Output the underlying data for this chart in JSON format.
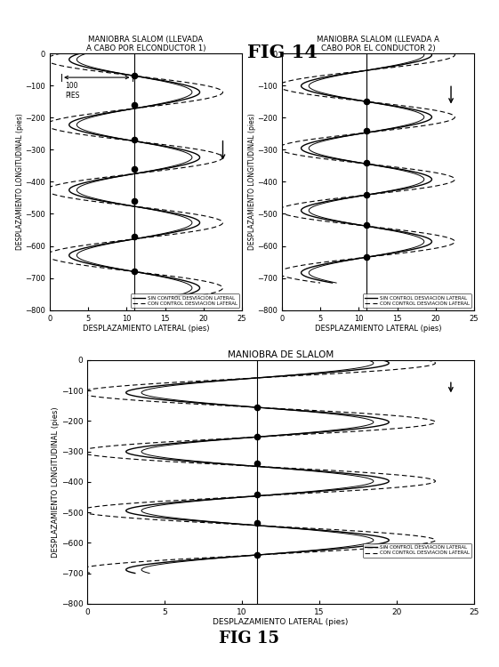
{
  "fig14_title": "FIG 14",
  "fig15_title": "FIG 15",
  "subplot1_title": "MANIOBRA SLALOM (LLEVADA\nA CABO POR ELCONDUCTOR 1)",
  "subplot2_title": "MANIOBRA SLALOM (LLEVADA A\nCABO POR EL CONDUCTOR 2)",
  "subplot3_title": "MANIOBRA DE SLALOM",
  "xlabel": "DESPLAZAMIENTO LATERAL (pies)",
  "ylabel": "DESPLAZAMIENTO LONGITUDINAL (pies)",
  "xlim": [
    0,
    25
  ],
  "ylim": [
    -800,
    0
  ],
  "xticks": [
    0,
    5,
    10,
    15,
    20,
    25
  ],
  "yticks": [
    0,
    -100,
    -200,
    -300,
    -400,
    -500,
    -600,
    -700,
    -800
  ],
  "legend_solid": "SIN CONTROL DESVIACIÓN LATERAL",
  "legend_dashed": "CON CONTROL DESVIACIÓN LATERAL",
  "cone_x": 11,
  "cone_ys_1": [
    -70,
    -160,
    -270,
    -360,
    -460,
    -570,
    -680
  ],
  "cone_ys_2": [
    -150,
    -240,
    -340,
    -440,
    -535,
    -635
  ],
  "cone_ys_3": [
    -155,
    -250,
    -340,
    -440,
    -535,
    -640
  ],
  "bg_color": "#ffffff",
  "line_color": "#000000"
}
